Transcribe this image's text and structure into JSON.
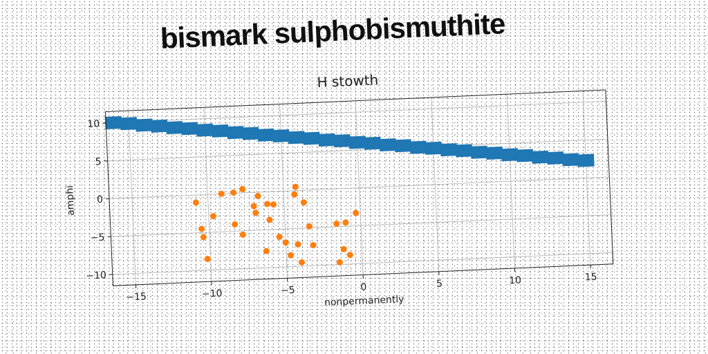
{
  "banner": "bismark sulphobismuthite",
  "chart_data": {
    "type": "scatter",
    "title": "H stowth",
    "xlabel": "nonpermanently",
    "ylabel": "amphi",
    "xlim": [
      -16.5,
      16.5
    ],
    "ylim": [
      -11.5,
      11.5
    ],
    "xticks": [
      -15,
      -10,
      -5,
      0,
      5,
      10,
      15
    ],
    "yticks": [
      -10,
      -5,
      0,
      5,
      10
    ],
    "grid": true,
    "series": [
      {
        "color": "#1f77b4",
        "marker": "square",
        "points": [
          [
            -16,
            10
          ],
          [
            -15,
            9.8
          ],
          [
            -14,
            9.5
          ],
          [
            -13,
            9.3
          ],
          [
            -12,
            9.0
          ],
          [
            -11,
            8.8
          ],
          [
            -10,
            8.5
          ],
          [
            -9,
            8.3
          ],
          [
            -8,
            8.0
          ],
          [
            -7,
            7.8
          ],
          [
            -6,
            7.5
          ],
          [
            -5,
            7.3
          ],
          [
            -4,
            7.0
          ],
          [
            -3,
            6.8
          ],
          [
            -2,
            6.5
          ],
          [
            -1,
            6.3
          ],
          [
            0,
            6.0
          ],
          [
            1,
            5.8
          ],
          [
            2,
            5.5
          ],
          [
            3,
            5.3
          ],
          [
            4,
            5.0
          ],
          [
            5,
            4.8
          ],
          [
            6,
            4.5
          ],
          [
            7,
            4.3
          ],
          [
            8,
            4.0
          ],
          [
            9,
            3.8
          ],
          [
            10,
            3.5
          ],
          [
            11,
            3.3
          ],
          [
            12,
            3.0
          ],
          [
            13,
            2.8
          ],
          [
            14,
            2.5
          ],
          [
            15,
            2.3
          ]
        ]
      },
      {
        "color": "#ff7f0e",
        "marker": "circle",
        "points": [
          [
            -10.8,
            -1.0
          ],
          [
            -10.5,
            -4.5
          ],
          [
            -10.4,
            -5.6
          ],
          [
            -10.2,
            -8.5
          ],
          [
            -9.7,
            -2.9
          ],
          [
            -9.1,
            0.0
          ],
          [
            -8.3,
            0.1
          ],
          [
            -8.3,
            -4.1
          ],
          [
            -7.7,
            0.5
          ],
          [
            -7.8,
            -5.5
          ],
          [
            -7.0,
            -1.8
          ],
          [
            -6.9,
            -2.7
          ],
          [
            -6.7,
            -0.5
          ],
          [
            -6.3,
            -7.8
          ],
          [
            -6.1,
            -1.6
          ],
          [
            -6.0,
            -3.7
          ],
          [
            -5.7,
            -1.7
          ],
          [
            -5.4,
            -6.0
          ],
          [
            -5.0,
            -6.8
          ],
          [
            -4.7,
            -8.5
          ],
          [
            -4.3,
            -0.5
          ],
          [
            -4.2,
            0.5
          ],
          [
            -4.2,
            -7.1
          ],
          [
            -4.0,
            -9.5
          ],
          [
            -3.7,
            -1.6
          ],
          [
            -3.4,
            -4.8
          ],
          [
            -3.2,
            -7.3
          ],
          [
            -1.6,
            -4.6
          ],
          [
            -1.5,
            -9.7
          ],
          [
            -1.2,
            -8.0
          ],
          [
            -1.0,
            -4.5
          ],
          [
            -0.8,
            -8.8
          ],
          [
            -0.3,
            -3.3
          ]
        ]
      }
    ]
  }
}
